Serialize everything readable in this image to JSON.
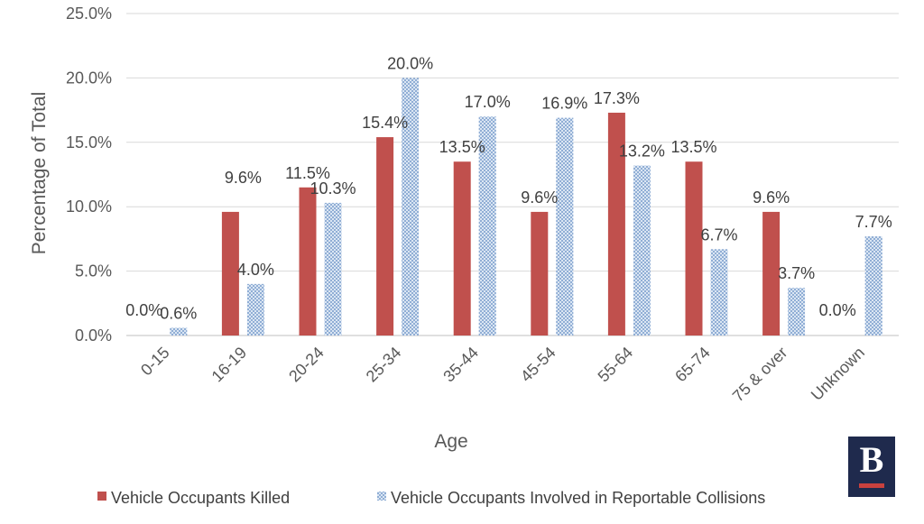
{
  "chart_data": {
    "type": "bar",
    "xlabel": "Age",
    "ylabel": "Percentage of Total",
    "ylim": [
      0,
      25
    ],
    "yticks": [
      "0.0%",
      "5.0%",
      "10.0%",
      "15.0%",
      "20.0%",
      "25.0%"
    ],
    "grid": true,
    "legend_position": "bottom",
    "categories": [
      "0-15",
      "16-19",
      "20-24",
      "25-34",
      "35-44",
      "45-54",
      "55-64",
      "65-74",
      "75 & over",
      "Unknown"
    ],
    "series": [
      {
        "name": "Vehicle Occupants Killed",
        "color": "#c0504d",
        "pattern": "solid",
        "values": [
          0.0,
          9.6,
          11.5,
          15.4,
          13.5,
          9.6,
          17.3,
          13.5,
          9.6,
          0.0
        ],
        "labels": [
          "0.0%",
          "9.6%",
          "11.5%",
          "15.4%",
          "13.5%",
          "9.6%",
          "17.3%",
          "13.5%",
          "9.6%",
          "0.0%"
        ]
      },
      {
        "name": "Vehicle Occupants Involved in Reportable Collisions",
        "color": "#4f81bd",
        "pattern": "dotted",
        "values": [
          0.6,
          4.0,
          10.3,
          20.0,
          17.0,
          16.9,
          13.2,
          6.7,
          3.7,
          7.7
        ],
        "labels": [
          "0.6%",
          "4.0%",
          "10.3%",
          "20.0%",
          "17.0%",
          "16.9%",
          "13.2%",
          "6.7%",
          "3.7%",
          "7.7%"
        ]
      }
    ]
  },
  "logo": {
    "letter": "B"
  }
}
